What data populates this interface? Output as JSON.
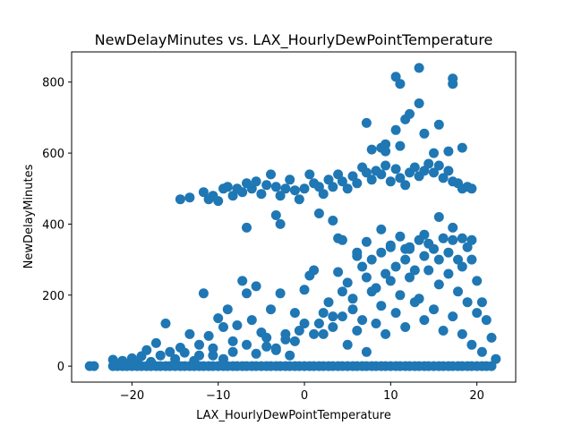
{
  "chart_data": {
    "type": "scatter",
    "title": "NewDelayMinutes vs. LAX_HourlyDewPointTemperature",
    "xlabel": "LAX_HourlyDewPointTemperature",
    "ylabel": "NewDelayMinutes",
    "xlim": [
      -27.0,
      24.5
    ],
    "ylim": [
      -45,
      885
    ],
    "xticks": [
      -20,
      -10,
      0,
      10,
      20
    ],
    "yticks": [
      0,
      200,
      400,
      600,
      800
    ],
    "xtick_labels": [
      "−20",
      "−10",
      "0",
      "10",
      "20"
    ],
    "ytick_labels": [
      "0",
      "200",
      "400",
      "600",
      "800"
    ],
    "grid": false,
    "marker_color": "#1f77b4",
    "series": [
      {
        "values": [
          [
            -24.9,
            0
          ],
          [
            -24.4,
            0
          ],
          [
            -22.2,
            0
          ],
          [
            -22.2,
            18
          ],
          [
            -21.7,
            3
          ],
          [
            -21.1,
            15
          ],
          [
            -20.6,
            5
          ],
          [
            -20.0,
            22
          ],
          [
            -19.4,
            10
          ],
          [
            -18.9,
            28
          ],
          [
            -18.3,
            45
          ],
          [
            -17.8,
            12
          ],
          [
            -17.2,
            65
          ],
          [
            -16.7,
            30
          ],
          [
            -16.1,
            120
          ],
          [
            -15.6,
            40
          ],
          [
            -15.0,
            20
          ],
          [
            -14.4,
            52
          ],
          [
            -13.9,
            38
          ],
          [
            -13.3,
            90
          ],
          [
            -12.8,
            15
          ],
          [
            -12.2,
            60
          ],
          [
            -11.7,
            205
          ],
          [
            -11.1,
            85
          ],
          [
            -10.6,
            30
          ],
          [
            -10.0,
            135
          ],
          [
            -9.4,
            110
          ],
          [
            -8.9,
            160
          ],
          [
            -8.3,
            70
          ],
          [
            -7.8,
            115
          ],
          [
            -7.2,
            240
          ],
          [
            -6.7,
            205
          ],
          [
            -6.1,
            130
          ],
          [
            -5.6,
            225
          ],
          [
            -5.0,
            95
          ],
          [
            -4.4,
            55
          ],
          [
            -3.9,
            160
          ],
          [
            -3.3,
            45
          ],
          [
            -2.8,
            205
          ],
          [
            -2.2,
            75
          ],
          [
            -1.7,
            30
          ],
          [
            -1.1,
            150
          ],
          [
            -0.6,
            100
          ],
          [
            0.0,
            215
          ],
          [
            0.6,
            255
          ],
          [
            1.1,
            270
          ],
          [
            1.7,
            120
          ],
          [
            2.2,
            90
          ],
          [
            2.8,
            180
          ],
          [
            3.3,
            140
          ],
          [
            3.9,
            265
          ],
          [
            4.4,
            210
          ],
          [
            5.0,
            235
          ],
          [
            5.6,
            160
          ],
          [
            6.1,
            310
          ],
          [
            6.7,
            280
          ],
          [
            7.2,
            250
          ],
          [
            7.8,
            300
          ],
          [
            8.3,
            220
          ],
          [
            8.9,
            320
          ],
          [
            9.4,
            260
          ],
          [
            10.0,
            340
          ],
          [
            10.6,
            280
          ],
          [
            11.1,
            365
          ],
          [
            11.7,
            300
          ],
          [
            12.2,
            330
          ],
          [
            12.8,
            270
          ],
          [
            13.3,
            355
          ],
          [
            13.9,
            310
          ],
          [
            14.4,
            345
          ],
          [
            15.0,
            330
          ],
          [
            15.6,
            300
          ],
          [
            16.1,
            360
          ],
          [
            16.7,
            320
          ],
          [
            17.2,
            355
          ],
          [
            17.8,
            300
          ],
          [
            18.3,
            280
          ],
          [
            18.9,
            335
          ],
          [
            19.4,
            300
          ],
          [
            20.0,
            240
          ],
          [
            20.6,
            180
          ],
          [
            21.1,
            130
          ],
          [
            21.7,
            80
          ],
          [
            22.2,
            20
          ],
          [
            -11.7,
            490
          ],
          [
            -11.1,
            470
          ],
          [
            -10.6,
            480
          ],
          [
            -10.0,
            465
          ],
          [
            -9.4,
            500
          ],
          [
            -8.9,
            505
          ],
          [
            -8.3,
            480
          ],
          [
            -7.8,
            500
          ],
          [
            -7.2,
            490
          ],
          [
            -6.7,
            515
          ],
          [
            -6.1,
            500
          ],
          [
            -5.6,
            520
          ],
          [
            -5.0,
            485
          ],
          [
            -4.4,
            510
          ],
          [
            -3.9,
            540
          ],
          [
            -3.3,
            505
          ],
          [
            -2.8,
            480
          ],
          [
            -2.2,
            500
          ],
          [
            -1.7,
            525
          ],
          [
            -1.1,
            495
          ],
          [
            -0.6,
            470
          ],
          [
            0.0,
            500
          ],
          [
            0.6,
            540
          ],
          [
            1.1,
            515
          ],
          [
            1.7,
            505
          ],
          [
            2.2,
            485
          ],
          [
            2.8,
            525
          ],
          [
            3.3,
            505
          ],
          [
            3.9,
            540
          ],
          [
            4.4,
            520
          ],
          [
            5.0,
            500
          ],
          [
            5.6,
            535
          ],
          [
            6.1,
            515
          ],
          [
            6.7,
            560
          ],
          [
            7.2,
            545
          ],
          [
            7.8,
            525
          ],
          [
            8.3,
            550
          ],
          [
            8.9,
            540
          ],
          [
            9.4,
            565
          ],
          [
            10.0,
            520
          ],
          [
            10.6,
            555
          ],
          [
            11.1,
            530
          ],
          [
            11.7,
            510
          ],
          [
            12.2,
            545
          ],
          [
            12.8,
            560
          ],
          [
            13.3,
            535
          ],
          [
            13.9,
            550
          ],
          [
            14.4,
            570
          ],
          [
            15.0,
            545
          ],
          [
            15.6,
            565
          ],
          [
            16.1,
            530
          ],
          [
            16.7,
            550
          ],
          [
            17.2,
            520
          ],
          [
            17.8,
            515
          ],
          [
            18.3,
            500
          ],
          [
            18.9,
            505
          ],
          [
            19.4,
            500
          ],
          [
            -14.4,
            470
          ],
          [
            -13.3,
            475
          ],
          [
            -6.7,
            390
          ],
          [
            -2.8,
            400
          ],
          [
            -3.3,
            425
          ],
          [
            1.7,
            430
          ],
          [
            3.3,
            410
          ],
          [
            3.9,
            360
          ],
          [
            4.4,
            355
          ],
          [
            6.1,
            320
          ],
          [
            7.2,
            350
          ],
          [
            8.9,
            385
          ],
          [
            10.0,
            335
          ],
          [
            11.7,
            330
          ],
          [
            12.2,
            335
          ],
          [
            13.9,
            370
          ],
          [
            15.6,
            420
          ],
          [
            17.2,
            390
          ],
          [
            18.3,
            360
          ],
          [
            19.4,
            355
          ],
          [
            7.8,
            610
          ],
          [
            8.9,
            615
          ],
          [
            9.4,
            625
          ],
          [
            9.4,
            605
          ],
          [
            7.2,
            685
          ],
          [
            10.6,
            665
          ],
          [
            11.1,
            620
          ],
          [
            11.7,
            695
          ],
          [
            12.2,
            710
          ],
          [
            13.3,
            740
          ],
          [
            13.9,
            655
          ],
          [
            15.6,
            680
          ],
          [
            15.0,
            600
          ],
          [
            10.6,
            815
          ],
          [
            11.1,
            795
          ],
          [
            13.3,
            840
          ],
          [
            17.2,
            810
          ],
          [
            17.2,
            795
          ],
          [
            16.7,
            605
          ],
          [
            18.3,
            615
          ],
          [
            -21.7,
            0
          ],
          [
            -21.1,
            0
          ],
          [
            -20.6,
            0
          ],
          [
            -20.0,
            0
          ],
          [
            -19.4,
            0
          ],
          [
            -18.9,
            0
          ],
          [
            -18.3,
            0
          ],
          [
            -17.8,
            0
          ],
          [
            -17.2,
            0
          ],
          [
            -16.7,
            0
          ],
          [
            -16.1,
            0
          ],
          [
            -15.6,
            0
          ],
          [
            -15.0,
            0
          ],
          [
            -14.4,
            0
          ],
          [
            -13.9,
            0
          ],
          [
            -13.3,
            0
          ],
          [
            -12.8,
            0
          ],
          [
            -12.2,
            0
          ],
          [
            -11.7,
            0
          ],
          [
            -11.1,
            0
          ],
          [
            -10.6,
            0
          ],
          [
            -10.0,
            0
          ],
          [
            -9.4,
            0
          ],
          [
            -8.9,
            0
          ],
          [
            -8.3,
            0
          ],
          [
            -7.8,
            0
          ],
          [
            -7.2,
            0
          ],
          [
            -6.7,
            0
          ],
          [
            -6.1,
            0
          ],
          [
            -5.6,
            0
          ],
          [
            -5.0,
            0
          ],
          [
            -4.4,
            0
          ],
          [
            -3.9,
            0
          ],
          [
            -3.3,
            0
          ],
          [
            -2.8,
            0
          ],
          [
            -2.2,
            0
          ],
          [
            -1.7,
            0
          ],
          [
            -1.1,
            0
          ],
          [
            -0.6,
            0
          ],
          [
            0.0,
            0
          ],
          [
            0.6,
            0
          ],
          [
            1.1,
            0
          ],
          [
            1.7,
            0
          ],
          [
            2.2,
            0
          ],
          [
            2.8,
            0
          ],
          [
            3.3,
            0
          ],
          [
            3.9,
            0
          ],
          [
            4.4,
            0
          ],
          [
            5.0,
            0
          ],
          [
            5.6,
            0
          ],
          [
            6.1,
            0
          ],
          [
            6.7,
            0
          ],
          [
            7.2,
            0
          ],
          [
            7.8,
            0
          ],
          [
            8.3,
            0
          ],
          [
            8.9,
            0
          ],
          [
            9.4,
            0
          ],
          [
            10.0,
            0
          ],
          [
            10.6,
            0
          ],
          [
            11.1,
            0
          ],
          [
            11.7,
            0
          ],
          [
            12.2,
            0
          ],
          [
            12.8,
            0
          ],
          [
            13.3,
            0
          ],
          [
            13.9,
            0
          ],
          [
            14.4,
            0
          ],
          [
            15.0,
            0
          ],
          [
            15.6,
            0
          ],
          [
            16.1,
            0
          ],
          [
            16.7,
            0
          ],
          [
            17.2,
            0
          ],
          [
            17.8,
            0
          ],
          [
            18.3,
            0
          ],
          [
            18.9,
            0
          ],
          [
            19.4,
            0
          ],
          [
            20.0,
            0
          ],
          [
            20.6,
            0
          ],
          [
            21.1,
            0
          ],
          [
            21.7,
            0
          ],
          [
            -12.2,
            30
          ],
          [
            -10.6,
            50
          ],
          [
            -9.4,
            20
          ],
          [
            -8.3,
            40
          ],
          [
            -6.7,
            60
          ],
          [
            -5.6,
            35
          ],
          [
            -4.4,
            80
          ],
          [
            -3.3,
            50
          ],
          [
            -2.2,
            90
          ],
          [
            -1.1,
            70
          ],
          [
            0.0,
            120
          ],
          [
            1.1,
            90
          ],
          [
            2.2,
            150
          ],
          [
            3.3,
            110
          ],
          [
            4.4,
            140
          ],
          [
            5.6,
            190
          ],
          [
            6.7,
            130
          ],
          [
            7.8,
            210
          ],
          [
            8.9,
            170
          ],
          [
            10.0,
            240
          ],
          [
            11.1,
            200
          ],
          [
            12.2,
            250
          ],
          [
            13.3,
            190
          ],
          [
            14.4,
            270
          ],
          [
            15.6,
            230
          ],
          [
            16.7,
            260
          ],
          [
            17.8,
            210
          ],
          [
            18.9,
            180
          ],
          [
            20.0,
            150
          ],
          [
            5.0,
            60
          ],
          [
            6.1,
            100
          ],
          [
            7.2,
            40
          ],
          [
            8.3,
            120
          ],
          [
            9.4,
            90
          ],
          [
            10.6,
            150
          ],
          [
            11.7,
            110
          ],
          [
            12.8,
            180
          ],
          [
            13.9,
            130
          ],
          [
            15.0,
            160
          ],
          [
            16.1,
            100
          ],
          [
            17.2,
            140
          ],
          [
            18.3,
            90
          ],
          [
            19.4,
            60
          ],
          [
            20.6,
            40
          ]
        ]
      }
    ]
  }
}
